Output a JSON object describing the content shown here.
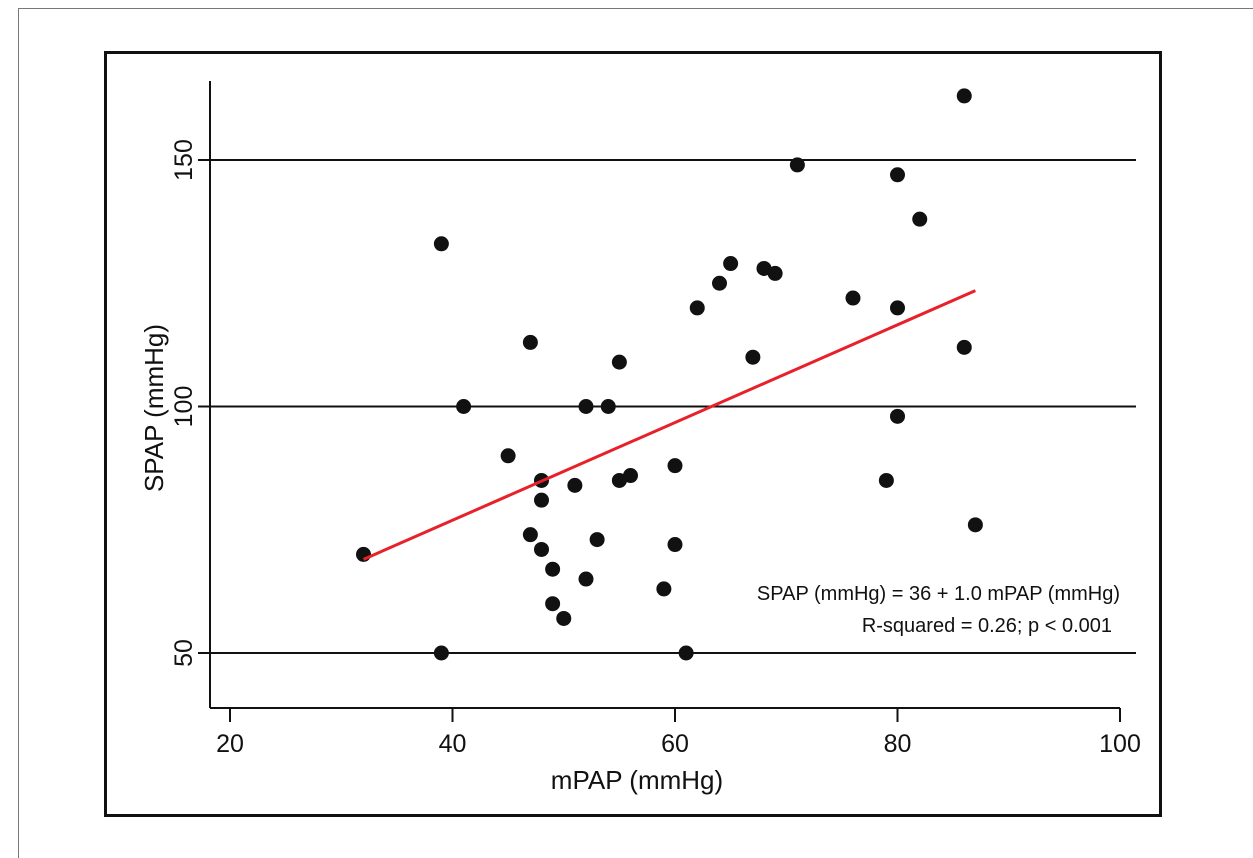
{
  "chart_data": {
    "type": "scatter",
    "xlabel": "mPAP (mmHg)",
    "ylabel": "SPAP (mmHg)",
    "xlim": [
      20,
      101
    ],
    "ylim": [
      40,
      165
    ],
    "x_ticks": [
      20,
      40,
      60,
      80,
      100
    ],
    "y_ticks": [
      50,
      100,
      150
    ],
    "x_tick_labels": [
      "20",
      "40",
      "60",
      "80",
      "100"
    ],
    "y_tick_labels": [
      "50",
      "100",
      "150"
    ],
    "grid": "horizontal at y ticks",
    "points": [
      {
        "x": 32,
        "y": 70
      },
      {
        "x": 39,
        "y": 133
      },
      {
        "x": 39,
        "y": 50
      },
      {
        "x": 41,
        "y": 100
      },
      {
        "x": 45,
        "y": 90
      },
      {
        "x": 47,
        "y": 113
      },
      {
        "x": 47,
        "y": 74
      },
      {
        "x": 48,
        "y": 85
      },
      {
        "x": 48,
        "y": 81
      },
      {
        "x": 48,
        "y": 71
      },
      {
        "x": 49,
        "y": 67
      },
      {
        "x": 49,
        "y": 60
      },
      {
        "x": 50,
        "y": 57
      },
      {
        "x": 51,
        "y": 84
      },
      {
        "x": 52,
        "y": 100
      },
      {
        "x": 52,
        "y": 65
      },
      {
        "x": 53,
        "y": 73
      },
      {
        "x": 54,
        "y": 100
      },
      {
        "x": 55,
        "y": 109
      },
      {
        "x": 55,
        "y": 85
      },
      {
        "x": 56,
        "y": 86
      },
      {
        "x": 59,
        "y": 63
      },
      {
        "x": 60,
        "y": 88
      },
      {
        "x": 60,
        "y": 72
      },
      {
        "x": 61,
        "y": 50
      },
      {
        "x": 62,
        "y": 120
      },
      {
        "x": 64,
        "y": 125
      },
      {
        "x": 65,
        "y": 129
      },
      {
        "x": 67,
        "y": 110
      },
      {
        "x": 68,
        "y": 128
      },
      {
        "x": 69,
        "y": 127
      },
      {
        "x": 71,
        "y": 149
      },
      {
        "x": 76,
        "y": 122
      },
      {
        "x": 79,
        "y": 85
      },
      {
        "x": 80,
        "y": 147
      },
      {
        "x": 80,
        "y": 120
      },
      {
        "x": 80,
        "y": 98
      },
      {
        "x": 82,
        "y": 138
      },
      {
        "x": 86,
        "y": 163
      },
      {
        "x": 86,
        "y": 112
      },
      {
        "x": 87,
        "y": 76
      }
    ],
    "fit_line": {
      "x": [
        32,
        87
      ],
      "y": [
        69,
        123.5
      ],
      "color": "#e8202a"
    },
    "point_color": "#111111",
    "annotations": [
      "SPAP (mmHg) = 36 + 1.0 mPAP (mmHg)",
      "R-squared = 0.26; p < 0.001"
    ]
  }
}
